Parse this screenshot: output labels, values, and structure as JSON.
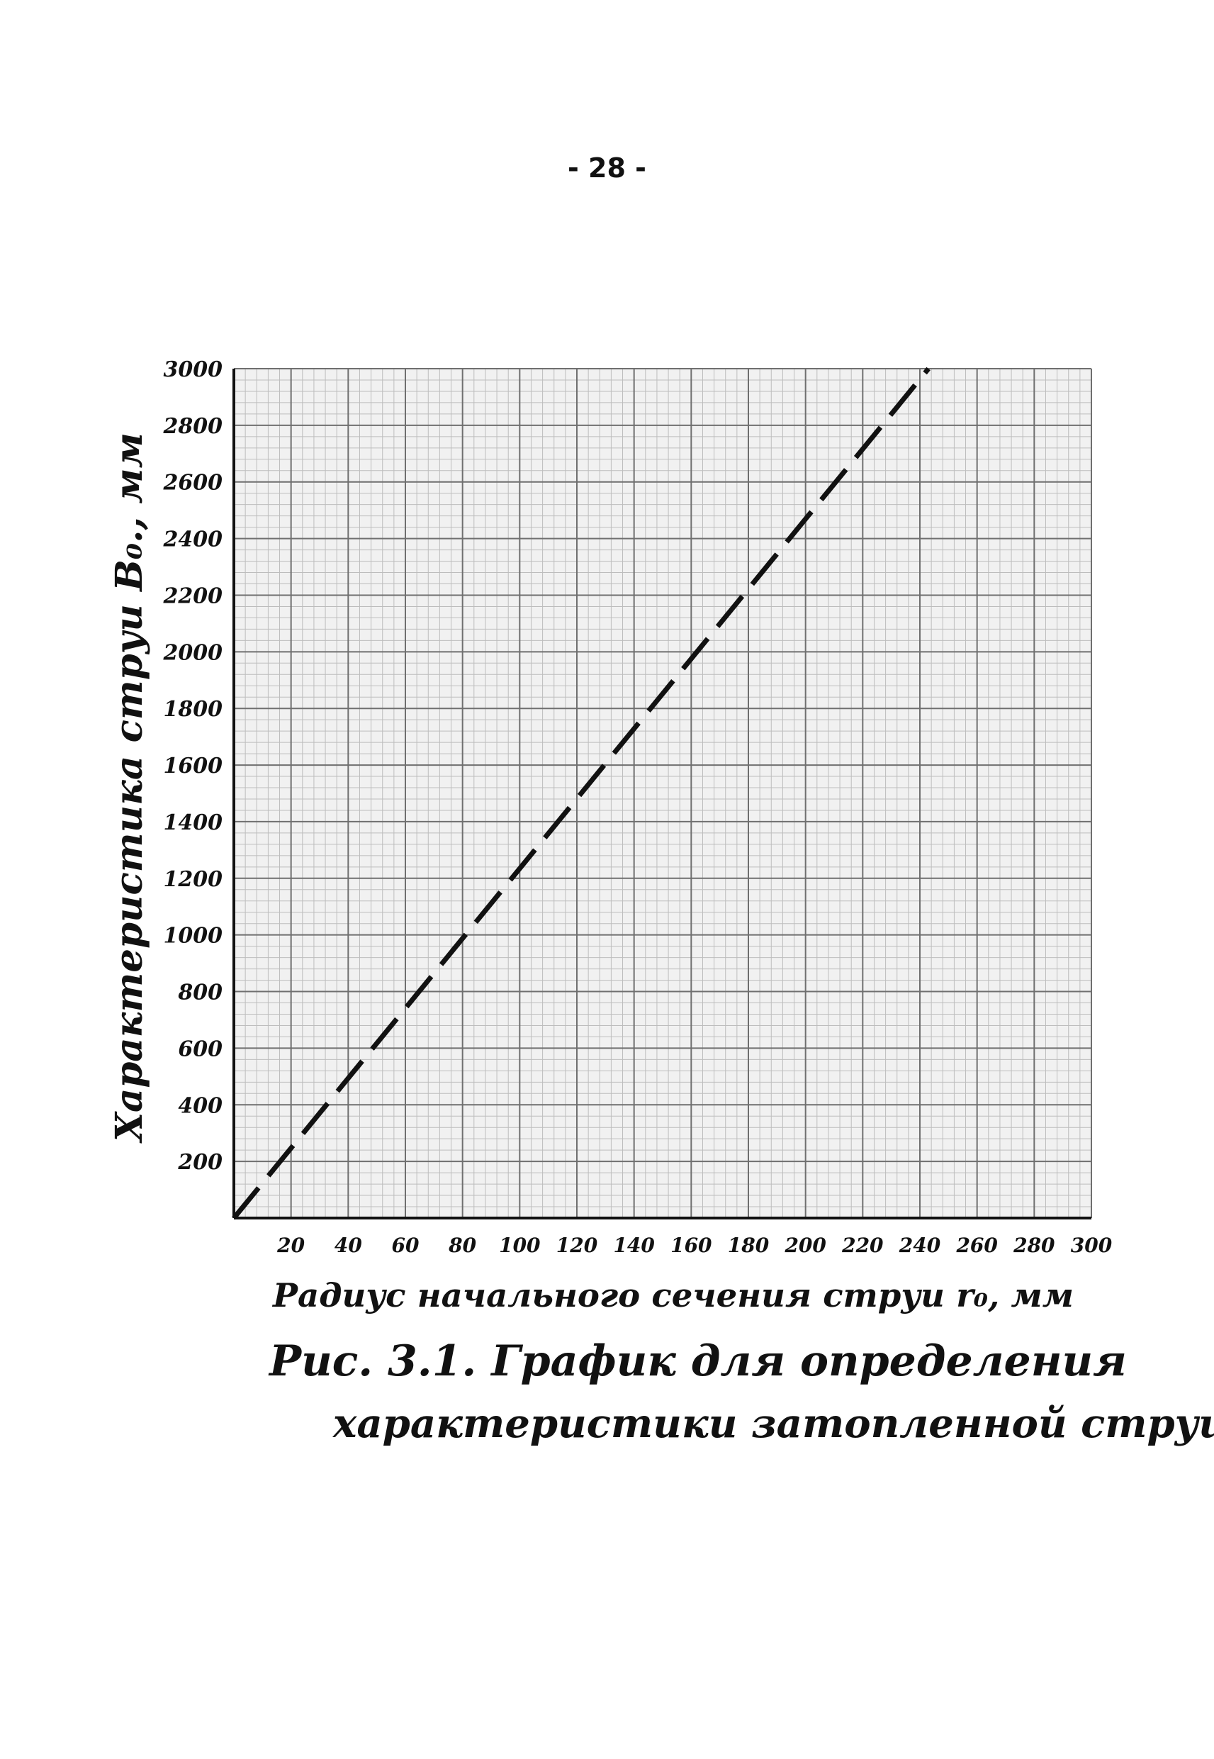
{
  "page": {
    "number_label": "- 28 -"
  },
  "caption": {
    "line1": "Рис. 3.1. График для определения",
    "line2": "характеристики затопленной струи."
  },
  "colors": {
    "grid_major": "#6f6f6f",
    "grid_minor": "#bdbdbd",
    "plot_background": "#f1f1f1",
    "line": "#111111",
    "text": "#111111"
  },
  "chart_data": {
    "type": "line",
    "title": "",
    "xlabel": "Радиус начального сечения струи r₀, мм",
    "ylabel": "Характеристика струи B₀., мм",
    "xlim": [
      0,
      300
    ],
    "ylim": [
      0,
      3000
    ],
    "x_ticks": [
      20,
      40,
      60,
      80,
      100,
      120,
      140,
      160,
      180,
      200,
      220,
      240,
      260,
      280,
      300
    ],
    "x_tick_labels": [
      "20",
      "40",
      "60",
      "80",
      "100",
      "120",
      "140",
      "160",
      "180",
      "200",
      "220",
      "240",
      "260",
      "280",
      "300"
    ],
    "y_ticks": [
      200,
      400,
      600,
      800,
      1000,
      1200,
      1400,
      1600,
      1800,
      2000,
      2200,
      2400,
      2600,
      2800,
      3000
    ],
    "y_tick_labels": [
      "200",
      "400",
      "600",
      "800",
      "1000",
      "1200",
      "1400",
      "1600",
      "1800",
      "2000",
      "2200",
      "2400",
      "2600",
      "2800",
      "3000"
    ],
    "grid": true,
    "series": [
      {
        "style": "dashed",
        "x": [
          0,
          243
        ],
        "y": [
          0,
          3000
        ]
      }
    ]
  }
}
